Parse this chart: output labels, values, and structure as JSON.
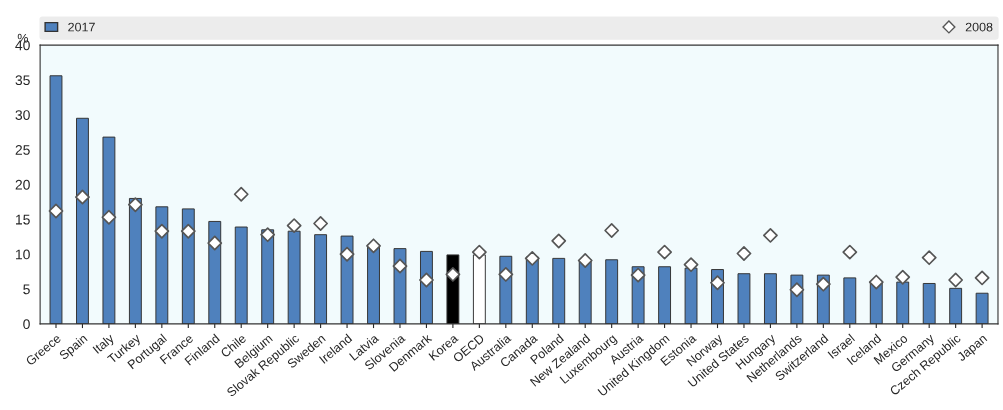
{
  "chart_data": {
    "type": "bar",
    "ylabel": "%",
    "categories": [
      "Greece",
      "Spain",
      "Italy",
      "Turkey",
      "Portugal",
      "France",
      "Finland",
      "Chile",
      "Belgium",
      "Slovak Republic",
      "Sweden",
      "Ireland",
      "Latvia",
      "Slovenia",
      "Denmark",
      "Korea",
      "OECD",
      "Australia",
      "Canada",
      "Poland",
      "New Zealand",
      "Luxembourg",
      "Austria",
      "United Kingdom",
      "Estonia",
      "Norway",
      "United States",
      "Hungary",
      "Netherlands",
      "Switzerland",
      "Israel",
      "Iceland",
      "Mexico",
      "Germany",
      "Czech Republic",
      "Japan"
    ],
    "series": [
      {
        "name": "2017",
        "color": "#4f81bd",
        "colors": [
          "#4f81bd",
          "#4f81bd",
          "#4f81bd",
          "#4f81bd",
          "#4f81bd",
          "#4f81bd",
          "#4f81bd",
          "#4f81bd",
          "#4f81bd",
          "#4f81bd",
          "#4f81bd",
          "#4f81bd",
          "#4f81bd",
          "#4f81bd",
          "#4f81bd",
          "#000000",
          "#ffffff",
          "#4f81bd",
          "#4f81bd",
          "#4f81bd",
          "#4f81bd",
          "#4f81bd",
          "#4f81bd",
          "#4f81bd",
          "#4f81bd",
          "#4f81bd",
          "#4f81bd",
          "#4f81bd",
          "#4f81bd",
          "#4f81bd",
          "#4f81bd",
          "#4f81bd",
          "#4f81bd",
          "#4f81bd",
          "#4f81bd",
          "#4f81bd"
        ],
        "values": [
          35.6,
          29.5,
          26.8,
          18.0,
          16.8,
          16.5,
          14.7,
          13.9,
          13.5,
          13.3,
          12.8,
          12.6,
          11.3,
          10.8,
          10.4,
          9.9,
          9.9,
          9.7,
          9.6,
          9.4,
          9.2,
          9.2,
          8.2,
          8.2,
          8.0,
          7.8,
          7.2,
          7.2,
          7.0,
          7.0,
          6.6,
          6.0,
          6.0,
          5.8,
          5.1,
          4.4
        ]
      },
      {
        "name": "2008",
        "type": "scatter",
        "color": "#ffffff",
        "values": [
          16.2,
          18.2,
          15.3,
          17.1,
          13.3,
          13.3,
          11.6,
          18.6,
          12.8,
          14.1,
          14.4,
          10.0,
          11.2,
          8.3,
          6.3,
          7.1,
          10.3,
          7.1,
          9.4,
          11.9,
          9.1,
          13.4,
          7.0,
          10.3,
          8.5,
          5.9,
          10.1,
          12.7,
          4.9,
          5.7,
          10.3,
          6.0,
          6.7,
          9.5,
          6.3,
          6.6
        ]
      }
    ],
    "ylim": [
      0,
      40
    ],
    "yticks": [
      0,
      5,
      10,
      15,
      20,
      25,
      30,
      35,
      40
    ],
    "grid": false,
    "legend": "top",
    "marker": "diamond"
  }
}
